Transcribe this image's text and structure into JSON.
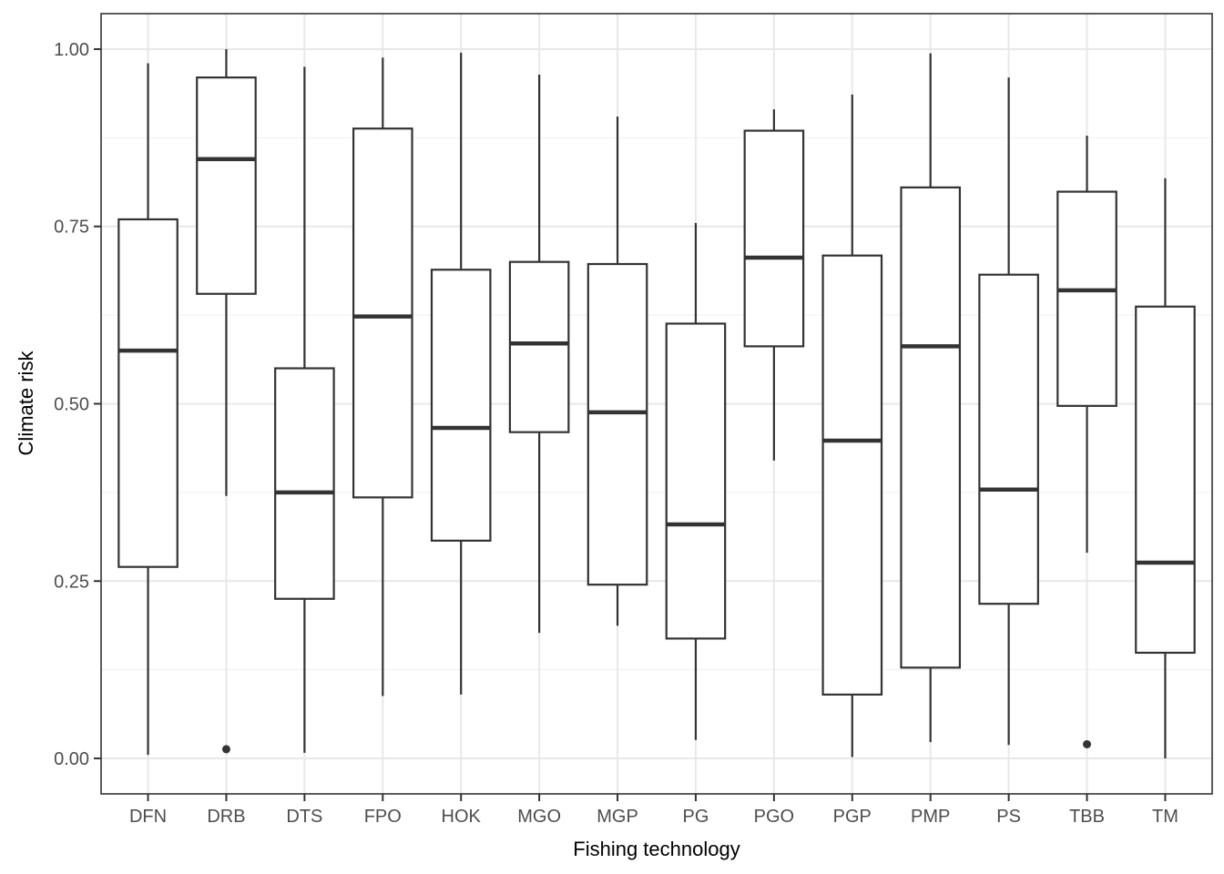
{
  "chart_data": {
    "type": "boxplot",
    "title": "",
    "xlabel": "Fishing technology",
    "ylabel": "Climate risk",
    "ylim": [
      -0.05,
      1.05
    ],
    "y_major_ticks": [
      0.0,
      0.25,
      0.5,
      0.75,
      1.0
    ],
    "y_tick_labels": [
      "0.00",
      "0.25",
      "0.50",
      "0.75",
      "1.00"
    ],
    "y_minor_ticks": [
      0.125,
      0.375,
      0.625,
      0.875
    ],
    "grid": true,
    "legend": "none",
    "categories": [
      "DFN",
      "DRB",
      "DTS",
      "FPO",
      "HOK",
      "MGO",
      "MGP",
      "PG",
      "PGO",
      "PGP",
      "PMP",
      "PS",
      "TBB",
      "TM"
    ],
    "boxes": [
      {
        "category": "DFN",
        "whisker_low": 0.005,
        "q1": 0.27,
        "median": 0.575,
        "q3": 0.76,
        "whisker_high": 0.98,
        "outliers": []
      },
      {
        "category": "DRB",
        "whisker_low": 0.37,
        "q1": 0.655,
        "median": 0.845,
        "q3": 0.96,
        "whisker_high": 1.0,
        "outliers": [
          0.013
        ]
      },
      {
        "category": "DTS",
        "whisker_low": 0.008,
        "q1": 0.225,
        "median": 0.375,
        "q3": 0.55,
        "whisker_high": 0.975,
        "outliers": []
      },
      {
        "category": "FPO",
        "whisker_low": 0.088,
        "q1": 0.368,
        "median": 0.623,
        "q3": 0.888,
        "whisker_high": 0.988,
        "outliers": []
      },
      {
        "category": "HOK",
        "whisker_low": 0.09,
        "q1": 0.307,
        "median": 0.466,
        "q3": 0.689,
        "whisker_high": 0.995,
        "outliers": []
      },
      {
        "category": "MGO",
        "whisker_low": 0.177,
        "q1": 0.46,
        "median": 0.585,
        "q3": 0.7,
        "whisker_high": 0.964,
        "outliers": []
      },
      {
        "category": "MGP",
        "whisker_low": 0.187,
        "q1": 0.245,
        "median": 0.488,
        "q3": 0.697,
        "whisker_high": 0.905,
        "outliers": []
      },
      {
        "category": "PG",
        "whisker_low": 0.026,
        "q1": 0.169,
        "median": 0.33,
        "q3": 0.613,
        "whisker_high": 0.755,
        "outliers": []
      },
      {
        "category": "PGO",
        "whisker_low": 0.42,
        "q1": 0.581,
        "median": 0.706,
        "q3": 0.885,
        "whisker_high": 0.915,
        "outliers": []
      },
      {
        "category": "PGP",
        "whisker_low": 0.002,
        "q1": 0.09,
        "median": 0.448,
        "q3": 0.709,
        "whisker_high": 0.936,
        "outliers": []
      },
      {
        "category": "PMP",
        "whisker_low": 0.023,
        "q1": 0.128,
        "median": 0.581,
        "q3": 0.805,
        "whisker_high": 0.994,
        "outliers": []
      },
      {
        "category": "PS",
        "whisker_low": 0.019,
        "q1": 0.218,
        "median": 0.379,
        "q3": 0.682,
        "whisker_high": 0.96,
        "outliers": []
      },
      {
        "category": "TBB",
        "whisker_low": 0.29,
        "q1": 0.497,
        "median": 0.66,
        "q3": 0.799,
        "whisker_high": 0.878,
        "outliers": [
          0.02
        ]
      },
      {
        "category": "TM",
        "whisker_low": 0.0,
        "q1": 0.149,
        "median": 0.276,
        "q3": 0.637,
        "whisker_high": 0.818,
        "outliers": []
      }
    ],
    "colors": {
      "box_stroke": "#333333",
      "box_fill": "#FFFFFF",
      "panel_border": "#333333",
      "grid_major": "#E8E8E8",
      "grid_minor": "#F3F3F3",
      "tick_mark": "#333333",
      "tick_label": "#4D4D4D",
      "axis_title": "#000000",
      "background": "#FFFFFF",
      "outlier": "#333333"
    }
  }
}
